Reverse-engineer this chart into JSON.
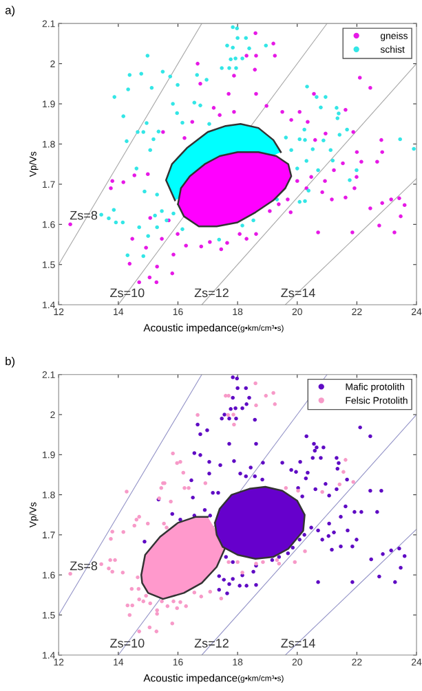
{
  "chart_data": [
    {
      "type": "scatter",
      "title": "a)",
      "xlabel": "Acoustic impedance(g•km/cm³•s)",
      "ylabel": "Vp/Vs",
      "xlim": [
        12,
        24
      ],
      "ylim": [
        1.4,
        2.1
      ],
      "xticks": [
        12,
        14,
        16,
        18,
        20,
        22,
        24
      ],
      "yticks": [
        1.4,
        1.5,
        1.6,
        1.7,
        1.8,
        1.9,
        2,
        2.1
      ],
      "legend": "top right",
      "marker": "circle",
      "grid": false,
      "line_style": "solid",
      "series": [
        {
          "name": "gneiss",
          "color": "#e619e6",
          "x": [
            18.6,
            19.2,
            18.62,
            19.25,
            18.3,
            16.66,
            18.58,
            17.88,
            16.75,
            22.1,
            22.45,
            17.7,
            18.62,
            20.56,
            18.97,
            17.2,
            17.88,
            21.62,
            16.48,
            19.8,
            20.35,
            15.5,
            16.22,
            20.95,
            22.82,
            22.85,
            21.88,
            20.6,
            19.5,
            20.08,
            17.4,
            22.0,
            12.39,
            13.8,
            13.75,
            14.17,
            14.99,
            14.54,
            14.47,
            14.7,
            15.28,
            15.05,
            15.81,
            14.38,
            14.93,
            15.3,
            15.46,
            15.85,
            15.99,
            15.07,
            15.69,
            16.27,
            16.78,
            17.45,
            17.65,
            18.07,
            18.3,
            18.62,
            17.07,
            19.08,
            19.78,
            19.68,
            20.0,
            20.31,
            20.84,
            21.16,
            21.62,
            21.92,
            21.99,
            21.53,
            22.15,
            22.68,
            21.23,
            20.7,
            21.85,
            22.45,
            22.85,
            23.15,
            23.42,
            23.6,
            23.47,
            23.26,
            22.75,
            20.47,
            20.93,
            19.38
          ],
          "values": [
            2.076,
            2.05,
            2.02,
            2.02,
            2.02,
            2.0,
            1.985,
            1.97,
            1.95,
            1.965,
            1.94,
            1.925,
            1.925,
            1.925,
            1.895,
            1.89,
            1.88,
            1.885,
            1.855,
            1.86,
            1.855,
            1.83,
            1.815,
            1.826,
            1.81,
            1.78,
            1.83,
            1.81,
            1.88,
            1.88,
            1.872,
            1.78,
            1.6,
            1.708,
            1.69,
            1.705,
            1.725,
            1.722,
            1.564,
            1.456,
            1.456,
            1.468,
            1.478,
            1.502,
            1.542,
            1.495,
            1.564,
            1.525,
            1.576,
            1.616,
            1.61,
            1.547,
            1.545,
            1.538,
            1.554,
            1.576,
            1.564,
            1.576,
            1.556,
            1.633,
            1.63,
            1.662,
            1.708,
            1.69,
            1.68,
            1.662,
            1.667,
            1.69,
            1.718,
            1.752,
            1.756,
            1.756,
            1.735,
            1.58,
            1.58,
            1.64,
            1.653,
            1.662,
            1.665,
            1.648,
            1.62,
            1.58,
            1.597,
            1.718,
            1.708,
            1.65
          ]
        },
        {
          "name": "schist",
          "color": "#33e6e6",
          "x": [
            17.84,
            17.98,
            18.0,
            18.28,
            17.65,
            17.84,
            18.39,
            18.95,
            17.77,
            17.93,
            18.16,
            17.47,
            17.72,
            17.95,
            14.98,
            14.38,
            14.77,
            15.49,
            15.74,
            14.33,
            15.12,
            13.87,
            15.99,
            16.64,
            16.96,
            15.83,
            16.55,
            16.75,
            14.17,
            15.97,
            16.15,
            14.95,
            14.65,
            14.84,
            14.28,
            15.18,
            15.35,
            15.07,
            17.05,
            20.33,
            20.65,
            20.95,
            20.79,
            21.32,
            21.39,
            21.35,
            21.67,
            21.42,
            20.24,
            20.26,
            20.08,
            19.62,
            20.88,
            21.12,
            20.52,
            23.45,
            23.91,
            19.8,
            13.43,
            13.85,
            13.68,
            13.92,
            14.15,
            14.61,
            14.88,
            14.7,
            14.31,
            14.84,
            15.3,
            15.46,
            15.23,
            15.62,
            15.3,
            15.0,
            15.85,
            16.15,
            17.38,
            18.16,
            18.53,
            20.0,
            20.26,
            20.38,
            20.7,
            21.76,
            21.99,
            20.31,
            21.19,
            20.08,
            19.32
          ],
          "values": [
            2.091,
            2.088,
            2.064,
            2.064,
            2.045,
            2.04,
            2.038,
            2.045,
            2.011,
            2.013,
            2.013,
            1.989,
            1.989,
            1.989,
            2.02,
            1.972,
            1.975,
            1.98,
            1.968,
            1.936,
            1.94,
            1.917,
            1.947,
            1.972,
            1.96,
            1.9,
            1.903,
            1.896,
            1.869,
            1.877,
            1.853,
            1.852,
            1.83,
            1.83,
            1.807,
            1.812,
            1.831,
            1.785,
            1.85,
            1.943,
            1.917,
            1.917,
            1.891,
            1.89,
            1.876,
            1.864,
            1.836,
            1.823,
            1.836,
            1.81,
            1.812,
            1.816,
            1.809,
            1.785,
            1.787,
            1.812,
            1.788,
            1.785,
            1.624,
            1.636,
            1.615,
            1.605,
            1.605,
            1.739,
            1.682,
            1.593,
            1.523,
            1.521,
            1.674,
            1.633,
            1.622,
            1.61,
            1.593,
            1.571,
            1.627,
            1.588,
            1.562,
            1.597,
            1.61,
            1.739,
            1.658,
            1.684,
            1.735,
            1.71,
            1.735,
            1.758,
            1.759,
            1.656,
            1.662
          ]
        },
        {
          "type": "area",
          "marker": "none",
          "color": "#00ffff",
          "x": [
            15.9,
            15.6,
            15.8,
            16.3,
            17.0,
            17.6,
            18.1,
            18.7,
            19.2,
            19.45
          ],
          "values": [
            1.66,
            1.71,
            1.75,
            1.79,
            1.83,
            1.845,
            1.85,
            1.84,
            1.81,
            1.78
          ]
        },
        {
          "type": "area",
          "marker": "none",
          "color": "#ff00ff",
          "x": [
            16.0,
            16.1,
            16.4,
            16.9,
            17.4,
            18.0,
            18.7,
            19.3,
            19.7,
            19.8,
            19.6,
            19.2,
            18.6,
            18.0,
            17.3,
            16.7,
            16.2,
            16.0
          ],
          "values": [
            1.65,
            1.69,
            1.72,
            1.75,
            1.77,
            1.78,
            1.78,
            1.77,
            1.75,
            1.72,
            1.69,
            1.66,
            1.63,
            1.605,
            1.595,
            1.595,
            1.62,
            1.65
          ]
        },
        {
          "type": "line",
          "marker": "none",
          "color": "#a8a8a8",
          "x": [
            12,
            16.8
          ],
          "values": [
            1.5,
            2.1
          ]
        },
        {
          "type": "line",
          "marker": "none",
          "color": "#a8a8a8",
          "x": [
            14,
            21
          ],
          "values": [
            1.4,
            2.1
          ]
        },
        {
          "type": "line",
          "marker": "none",
          "color": "#a8a8a8",
          "x": [
            16.8,
            24
          ],
          "values": [
            1.4,
            2.0
          ]
        },
        {
          "type": "line",
          "marker": "none",
          "color": "#a8a8a8",
          "x": [
            19.6,
            24
          ],
          "values": [
            1.4,
            1.714
          ]
        }
      ],
      "annotations": [
        {
          "text": "Zs=8",
          "x": 12.84,
          "y": 1.62
        },
        {
          "text": "Zs=10",
          "x": 14.3,
          "y": 1.427
        },
        {
          "text": "Zs=12",
          "x": 17.13,
          "y": 1.427
        },
        {
          "text": "Zs=14",
          "x": 20.03,
          "y": 1.427
        }
      ]
    },
    {
      "type": "scatter",
      "title": "b)",
      "xlabel": "Acoustic impedance(g•km/cm³•s)",
      "ylabel": "Vp/Vs",
      "xlim": [
        12,
        24
      ],
      "ylim": [
        1.4,
        2.1
      ],
      "xticks": [
        12,
        14,
        16,
        18,
        20,
        22,
        24
      ],
      "yticks": [
        1.4,
        1.5,
        1.6,
        1.7,
        1.8,
        1.9,
        2,
        2.1
      ],
      "legend": "top right",
      "marker": "circle",
      "grid": false,
      "line_style": "solid",
      "series": [
        {
          "name": "Mafic protolith",
          "color": "#5f0bc4",
          "x": [
            17.84,
            17.98,
            18.0,
            18.28,
            17.84,
            18.39,
            18.3,
            17.77,
            17.93,
            18.16,
            17.47,
            17.72,
            17.95,
            17.56,
            18.58,
            16.66,
            16.75,
            16.98,
            22.11,
            22.45,
            17.72,
            18.62,
            16.55,
            16.75,
            17.05,
            17.88,
            17.42,
            18.85,
            19.5,
            20.1,
            20.31,
            20.56,
            20.65,
            20.88,
            20.59,
            20.52,
            20.79,
            21.32,
            21.39,
            21.35,
            21.67,
            20.95,
            19.8,
            19.96,
            20.35,
            20.29,
            16.45,
            17.05,
            18.09,
            18.44,
            18.28,
            18.58,
            18.83,
            20.61,
            21.32,
            22.45,
            22.82,
            20.03,
            20.17,
            21.07,
            16.5,
            15.35,
            17.17,
            17.35,
            14.88,
            15.81,
            16.08,
            16.55,
            16.9,
            17.08,
            17.61,
            17.84,
            17.38,
            17.54,
            17.72,
            18.07,
            18.3,
            18.62,
            17.38,
            17.65,
            17.84,
            18.16,
            18.53,
            18.62,
            19.16,
            19.39,
            19.69,
            19.85,
            20.08,
            20.24,
            20.47,
            20.7,
            20.84,
            21.16,
            21.46,
            21.85,
            21.99,
            21.69,
            21.23,
            21.07,
            21.46,
            21.92,
            22.15,
            22.68,
            21.62,
            20.7,
            21.85,
            22.48,
            22.87,
            23.15,
            23.42,
            23.6,
            23.47,
            23.28,
            22.75,
            21.05
          ],
          "values": [
            2.093,
            2.09,
            2.066,
            2.066,
            2.042,
            2.042,
            2.026,
            2.014,
            2.016,
            2.016,
            1.99,
            1.99,
            1.99,
            2.0,
            1.987,
            1.975,
            1.951,
            1.961,
            1.968,
            1.946,
            1.927,
            1.927,
            1.904,
            1.899,
            1.882,
            1.884,
            1.874,
            1.88,
            1.88,
            1.882,
            1.946,
            1.927,
            1.918,
            1.918,
            1.91,
            1.892,
            1.892,
            1.892,
            1.879,
            1.865,
            1.838,
            1.827,
            1.862,
            1.857,
            1.855,
            1.841,
            1.836,
            1.853,
            1.853,
            1.868,
            1.846,
            1.846,
            1.838,
            1.814,
            1.814,
            1.81,
            1.81,
            1.817,
            1.796,
            1.798,
            1.793,
            1.788,
            1.805,
            1.805,
            1.683,
            1.752,
            1.738,
            1.748,
            1.762,
            1.748,
            1.645,
            1.632,
            1.597,
            1.588,
            1.577,
            1.573,
            1.573,
            1.575,
            1.563,
            1.554,
            1.59,
            1.599,
            1.608,
            1.623,
            1.637,
            1.645,
            1.654,
            1.668,
            1.688,
            1.7,
            1.718,
            1.711,
            1.688,
            1.663,
            1.671,
            1.671,
            1.688,
            1.711,
            1.706,
            1.728,
            1.745,
            1.757,
            1.757,
            1.757,
            1.771,
            1.582,
            1.582,
            1.639,
            1.652,
            1.661,
            1.666,
            1.647,
            1.618,
            1.582,
            1.596,
            1.697
          ]
        },
        {
          "name": "Felsic Protolith",
          "color": "#f79ac8",
          "x": [
            18.6,
            18.95,
            19.2,
            18.62,
            19.25,
            17.6,
            17.7,
            16.66,
            17.68,
            17.86,
            17.88,
            15.83,
            16.08,
            15.97,
            16.18,
            15.5,
            15.55,
            15.44,
            16.22,
            16.36,
            16.92,
            14.28,
            21.62,
            21.55,
            21.42,
            21.88,
            19.62,
            20.03,
            20.84,
            15.76,
            15.37,
            12.39,
            13.43,
            13.73,
            13.89,
            13.68,
            13.8,
            14.15,
            13.75,
            13.8,
            14.17,
            14.61,
            14.7,
            14.99,
            14.54,
            14.65,
            14.45,
            14.68,
            14.31,
            14.47,
            14.38,
            14.7,
            14.84,
            14.93,
            15.07,
            15.3,
            15.3,
            15.46,
            15.65,
            15.85,
            15.97,
            16.08,
            16.27,
            15.81,
            15.05,
            15.28,
            14.7,
            16.78,
            17.08,
            17.45,
            16.55,
            17.7,
            18.0,
            18.85,
            19.39,
            19.92,
            20.26,
            19.32,
            18.16,
            18.62,
            15.53,
            15.62
          ],
          "values": [
            2.078,
            2.047,
            2.054,
            2.023,
            2.026,
            2.047,
            2.047,
            1.999,
            1.999,
            2.0,
            1.975,
            1.903,
            1.882,
            1.879,
            1.855,
            1.829,
            1.829,
            1.817,
            1.817,
            1.817,
            1.829,
            1.808,
            1.887,
            1.857,
            1.826,
            1.832,
            1.817,
            1.81,
            1.807,
            1.783,
            1.791,
            1.603,
            1.627,
            1.637,
            1.637,
            1.616,
            1.608,
            1.606,
            1.69,
            1.708,
            1.707,
            1.738,
            1.745,
            1.728,
            1.723,
            1.594,
            1.565,
            1.565,
            1.524,
            1.524,
            1.5,
            1.539,
            1.534,
            1.548,
            1.529,
            1.512,
            1.503,
            1.534,
            1.522,
            1.534,
            1.517,
            1.532,
            1.522,
            1.479,
            1.469,
            1.459,
            1.459,
            1.546,
            1.558,
            1.541,
            1.556,
            1.632,
            1.632,
            1.632,
            1.628,
            1.632,
            1.659,
            1.637,
            1.606,
            1.628,
            1.728,
            1.718
          ]
        },
        {
          "type": "area",
          "marker": "none",
          "color": "#ff99cc",
          "x": [
            17.6,
            17.3,
            16.8,
            16.2,
            15.5,
            15.0,
            14.8,
            14.77,
            14.9,
            15.4,
            16.0,
            16.6,
            17.0
          ],
          "values": [
            1.67,
            1.62,
            1.58,
            1.555,
            1.54,
            1.555,
            1.58,
            1.6,
            1.65,
            1.695,
            1.73,
            1.745,
            1.745
          ]
        },
        {
          "type": "area",
          "marker": "none",
          "color": "#6600cc",
          "x": [
            17.24,
            17.4,
            17.8,
            18.4,
            18.93,
            19.5,
            20.0,
            20.25,
            20.2,
            19.7,
            19.2,
            18.6,
            18.0,
            17.5,
            17.3,
            17.24
          ],
          "values": [
            1.73,
            1.765,
            1.8,
            1.815,
            1.82,
            1.81,
            1.785,
            1.75,
            1.71,
            1.665,
            1.645,
            1.64,
            1.65,
            1.67,
            1.7,
            1.73
          ]
        },
        {
          "type": "line",
          "marker": "none",
          "color": "#9595c8",
          "x": [
            12,
            16.8
          ],
          "values": [
            1.5,
            2.1
          ]
        },
        {
          "type": "line",
          "marker": "none",
          "color": "#9595c8",
          "x": [
            14,
            21
          ],
          "values": [
            1.4,
            2.1
          ]
        },
        {
          "type": "line",
          "marker": "none",
          "color": "#9595c8",
          "x": [
            16.8,
            24
          ],
          "values": [
            1.4,
            2.0
          ]
        },
        {
          "type": "line",
          "marker": "none",
          "color": "#9595c8",
          "x": [
            19.6,
            24
          ],
          "values": [
            1.4,
            1.714
          ]
        }
      ],
      "annotations": [
        {
          "text": "Zs=8",
          "x": 12.84,
          "y": 1.62
        },
        {
          "text": "Zs=10",
          "x": 14.3,
          "y": 1.427
        },
        {
          "text": "Zs=12",
          "x": 17.13,
          "y": 1.427
        },
        {
          "text": "Zs=14",
          "x": 20.03,
          "y": 1.427
        }
      ]
    }
  ]
}
